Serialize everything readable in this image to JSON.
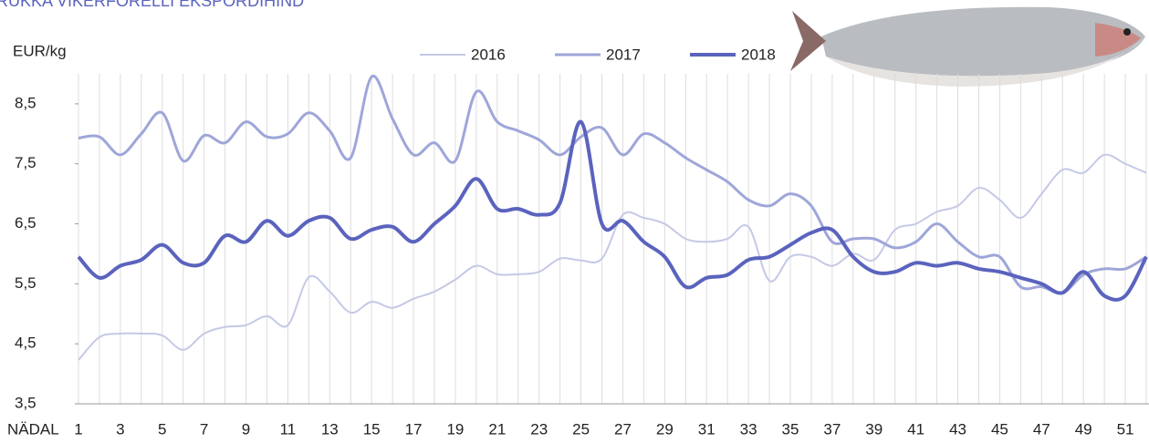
{
  "chart_data": {
    "type": "line",
    "title": "RUKKA VIKERFORELLI EKSPORDIHIND",
    "y_label": "EUR/kg",
    "x_label": "NÄDAL",
    "categories": [
      "1",
      null,
      "3",
      null,
      "5",
      null,
      "7",
      null,
      "9",
      null,
      "11",
      null,
      "13",
      null,
      "15",
      null,
      "17",
      null,
      "19",
      null,
      "21",
      null,
      "23",
      null,
      "25",
      null,
      "27",
      null,
      "29",
      null,
      "31",
      null,
      "33",
      null,
      "35",
      null,
      "37",
      null,
      "39",
      null,
      "41",
      null,
      "43",
      null,
      "45",
      null,
      "47",
      null,
      "49",
      null,
      "51",
      null
    ],
    "series": [
      {
        "name": "2016",
        "color": "#c5c9e6",
        "width": 2,
        "values": [
          4.23,
          4.61,
          4.67,
          4.67,
          4.64,
          4.4,
          4.67,
          4.78,
          4.81,
          4.96,
          4.81,
          5.61,
          5.37,
          5.02,
          5.2,
          5.1,
          5.25,
          5.37,
          5.57,
          5.8,
          5.66,
          5.66,
          5.7,
          5.92,
          5.89,
          5.92,
          6.65,
          6.6,
          6.5,
          6.25,
          6.2,
          6.25,
          6.45,
          5.55,
          5.95,
          5.95,
          5.8,
          6.0,
          5.9,
          6.4,
          6.5,
          6.7,
          6.8,
          7.1,
          6.9,
          6.6,
          7.0,
          7.4,
          7.35,
          7.65,
          7.5,
          7.35
        ]
      },
      {
        "name": "2017",
        "color": "#9ea6d9",
        "width": 3,
        "values": [
          7.93,
          7.95,
          7.65,
          8.0,
          8.35,
          7.55,
          7.97,
          7.85,
          8.2,
          7.95,
          8.0,
          8.35,
          8.05,
          7.6,
          8.95,
          8.25,
          7.65,
          7.85,
          7.55,
          8.7,
          8.2,
          8.05,
          7.9,
          7.65,
          7.95,
          8.1,
          7.65,
          8.0,
          7.85,
          7.6,
          7.4,
          7.2,
          6.9,
          6.8,
          7.0,
          6.8,
          6.2,
          6.25,
          6.25,
          6.1,
          6.2,
          6.5,
          6.2,
          5.95,
          5.95,
          5.45,
          5.45,
          5.35,
          5.65,
          5.75,
          5.75,
          5.95
        ]
      },
      {
        "name": "2018",
        "color": "#5a63bd",
        "width": 4,
        "values": [
          5.95,
          5.6,
          5.8,
          5.9,
          6.15,
          5.85,
          5.85,
          6.3,
          6.2,
          6.55,
          6.3,
          6.55,
          6.6,
          6.25,
          6.4,
          6.45,
          6.2,
          6.5,
          6.8,
          7.25,
          6.75,
          6.75,
          6.65,
          6.85,
          8.2,
          6.5,
          6.55,
          6.2,
          5.95,
          5.45,
          5.6,
          5.65,
          5.9,
          5.95,
          6.15,
          6.35,
          6.4,
          5.95,
          5.7,
          5.7,
          5.85,
          5.8,
          5.85,
          5.75,
          5.7,
          5.6,
          5.5,
          5.35,
          5.7,
          5.3,
          5.3,
          5.95
        ]
      }
    ],
    "ylim": [
      3.5,
      9.0
    ],
    "yticks": [
      {
        "value": 3.5,
        "label": "3,5"
      },
      {
        "value": 4.5,
        "label": "4,5"
      },
      {
        "value": 5.5,
        "label": "5,5"
      },
      {
        "value": 6.5,
        "label": "6,5"
      },
      {
        "value": 7.5,
        "label": "7,5"
      },
      {
        "value": 8.5,
        "label": "8,5"
      }
    ],
    "grid": "x"
  }
}
